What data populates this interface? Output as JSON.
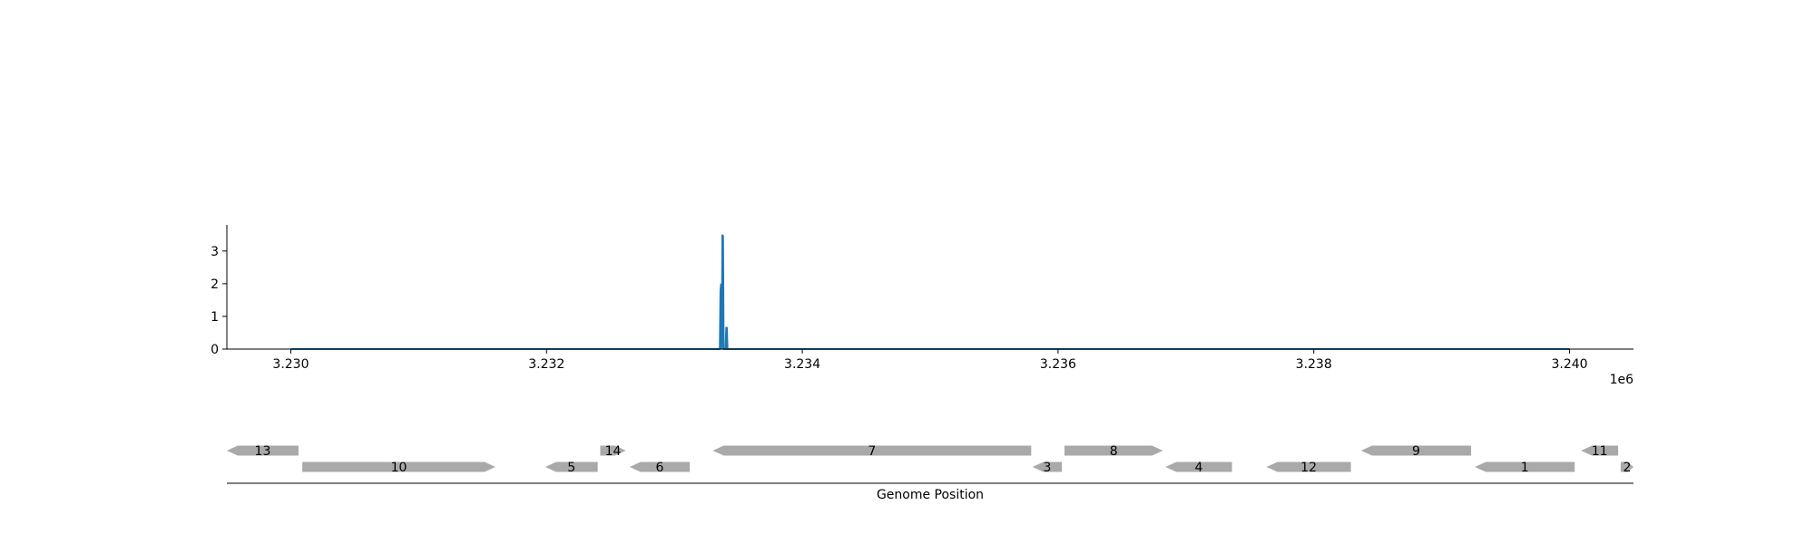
{
  "chart_data": [
    {
      "type": "line",
      "title": "",
      "xlabel": "",
      "ylabel": "",
      "x_offset_label": "1e6",
      "xlim": [
        3229500,
        3240500
      ],
      "ylim": [
        0,
        3.8
      ],
      "x_ticks": [
        3230000,
        3232000,
        3234000,
        3236000,
        3238000,
        3240000
      ],
      "x_tick_labels": [
        "3.230",
        "3.232",
        "3.234",
        "3.236",
        "3.238",
        "3.240"
      ],
      "y_ticks": [
        0,
        1,
        2,
        3
      ],
      "y_tick_labels": [
        "0",
        "1",
        "2",
        "3"
      ],
      "grid": false,
      "series": [
        {
          "color": "#1f77b4",
          "x": [
            3230000,
            3233355,
            3233360,
            3233365,
            3233370,
            3233375,
            3233380,
            3233385,
            3233390,
            3233395,
            3233400,
            3233405,
            3233410,
            3233415,
            3233420,
            3233425,
            3233430,
            3233435,
            3233440,
            3240000
          ],
          "y": [
            0,
            0,
            1.8,
            2.0,
            0,
            3.5,
            3.45,
            0,
            0,
            0,
            0,
            0.65,
            0.65,
            0,
            0,
            0,
            0,
            0,
            0,
            0
          ]
        }
      ]
    },
    {
      "type": "gene-track",
      "xlabel": "Genome Position",
      "xlim": [
        3229500,
        3240500
      ],
      "bar_color": "#a9a9a9",
      "genes": [
        {
          "label": "13",
          "start": 3229500,
          "end": 3230060,
          "strand": "-",
          "row": 0
        },
        {
          "label": "10",
          "start": 3230090,
          "end": 3231600,
          "strand": "+",
          "row": 1
        },
        {
          "label": "5",
          "start": 3231990,
          "end": 3232400,
          "strand": "-",
          "row": 1
        },
        {
          "label": "14",
          "start": 3232420,
          "end": 3232620,
          "strand": "+",
          "row": 0
        },
        {
          "label": "6",
          "start": 3232650,
          "end": 3233120,
          "strand": "-",
          "row": 1
        },
        {
          "label": "7",
          "start": 3233300,
          "end": 3235790,
          "strand": "-",
          "row": 0
        },
        {
          "label": "3",
          "start": 3235800,
          "end": 3236030,
          "strand": "-",
          "row": 1
        },
        {
          "label": "8",
          "start": 3236050,
          "end": 3236820,
          "strand": "+",
          "row": 0
        },
        {
          "label": "4",
          "start": 3236840,
          "end": 3237360,
          "strand": "-",
          "row": 1
        },
        {
          "label": "12",
          "start": 3237630,
          "end": 3238290,
          "strand": "-",
          "row": 1
        },
        {
          "label": "9",
          "start": 3238370,
          "end": 3239230,
          "strand": "-",
          "row": 0
        },
        {
          "label": "1",
          "start": 3239260,
          "end": 3240040,
          "strand": "-",
          "row": 1
        },
        {
          "label": "11",
          "start": 3240090,
          "end": 3240380,
          "strand": "-",
          "row": 0
        },
        {
          "label": "2",
          "start": 3240400,
          "end": 3240500,
          "strand": "+",
          "row": 1
        }
      ]
    }
  ]
}
